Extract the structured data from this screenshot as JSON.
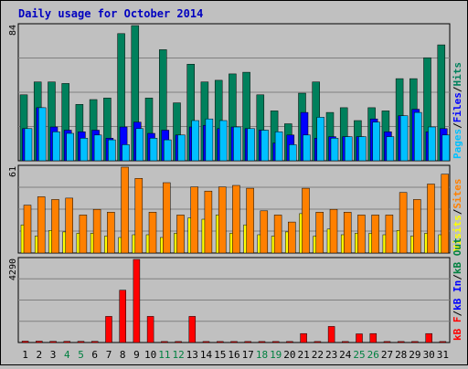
{
  "chart_data": {
    "title": "Daily usage for October 2014",
    "days": [
      "1",
      "2",
      "3",
      "4",
      "5",
      "6",
      "7",
      "8",
      "9",
      "10",
      "11",
      "12",
      "13",
      "14",
      "15",
      "16",
      "17",
      "18",
      "19",
      "20",
      "21",
      "22",
      "23",
      "24",
      "25",
      "26",
      "27",
      "28",
      "29",
      "30",
      "31"
    ],
    "weekend_days": [
      "4",
      "5",
      "11",
      "12",
      "18",
      "19",
      "25",
      "26"
    ],
    "colors": {
      "hits": "#00805c",
      "files": "#0000ff",
      "pages": "#00c0ff",
      "visits": "#ffff00",
      "sites": "#ff8000",
      "kb_in": "#0000ff",
      "kb_out": "#008040",
      "kb_f": "#ff0000",
      "title": "#0000c0",
      "weekend_label": "#008040",
      "plot_bg": "#c0c0c0",
      "outer_bg": "#c0c0c0"
    },
    "panels": [
      {
        "type": "bar",
        "ymax": 84,
        "ymax_label": "84",
        "series": [
          {
            "name": "Hits",
            "values": [
              41,
              49,
              49,
              48,
              35,
              38,
              39,
              79,
              84,
              39,
              69,
              36,
              60,
              49,
              50,
              54,
              55,
              41,
              31,
              23,
              42,
              49,
              30,
              33,
              25,
              33,
              31,
              51,
              51,
              64,
              72
            ]
          },
          {
            "name": "Files",
            "values": [
              20,
              33,
              21,
              19,
              18,
              19,
              14,
              21,
              24,
              17,
              19,
              16,
              21,
              22,
              20,
              21,
              20,
              19,
              11,
              16,
              30,
              14,
              15,
              15,
              15,
              26,
              18,
              28,
              32,
              18,
              20
            ]
          },
          {
            "name": "Pages",
            "values": [
              20,
              33,
              18,
              17,
              14,
              16,
              13,
              10,
              20,
              14,
              13,
              16,
              25,
              26,
              25,
              21,
              20,
              19,
              18,
              10,
              16,
              27,
              14,
              15,
              15,
              24,
              15,
              28,
              30,
              21,
              16
            ]
          }
        ]
      },
      {
        "type": "bar",
        "ymax": 61,
        "ymax_label": "61",
        "series": [
          {
            "name": "Visits",
            "values": [
              20,
              12,
              16,
              15,
              14,
              14,
              12,
              11,
              13,
              13,
              11,
              14,
              25,
              24,
              27,
              14,
              20,
              13,
              12,
              15,
              28,
              12,
              17,
              13,
              14,
              14,
              13,
              16,
              12,
              14,
              13
            ]
          },
          {
            "name": "Sites",
            "values": [
              34,
              40,
              38,
              39,
              27,
              31,
              29,
              61,
              53,
              29,
              50,
              27,
              47,
              44,
              47,
              48,
              46,
              30,
              27,
              22,
              46,
              29,
              31,
              29,
              27,
              27,
              27,
              43,
              38,
              49,
              56
            ]
          }
        ]
      },
      {
        "type": "bar",
        "ymax": 4290,
        "ymax_label": "4290",
        "series": [
          {
            "name": "kB F",
            "values": [
              70,
              70,
              60,
              60,
              60,
              60,
              1350,
              2700,
              4290,
              1350,
              50,
              50,
              1350,
              50,
              50,
              50,
              50,
              50,
              50,
              50,
              460,
              50,
              830,
              50,
              450,
              460,
              50,
              50,
              50,
              460,
              50
            ]
          },
          {
            "name": "kB In",
            "values": [
              0,
              0,
              0,
              0,
              0,
              0,
              0,
              0,
              0,
              0,
              0,
              0,
              0,
              0,
              0,
              0,
              0,
              0,
              0,
              0,
              0,
              0,
              0,
              0,
              0,
              0,
              0,
              0,
              0,
              0,
              0
            ]
          },
          {
            "name": "kB Out",
            "values": [
              0,
              0,
              0,
              0,
              0,
              0,
              0,
              0,
              0,
              0,
              0,
              0,
              0,
              0,
              0,
              0,
              0,
              0,
              0,
              0,
              0,
              0,
              0,
              0,
              0,
              0,
              0,
              0,
              0,
              0,
              0
            ]
          }
        ]
      }
    ],
    "legends": [
      [
        "Pages",
        "/",
        "Files",
        "/",
        "Hits"
      ],
      [
        "Visits",
        "/",
        "Sites"
      ],
      [
        "kB F",
        "/",
        "kB In",
        "/",
        "kB Out"
      ]
    ]
  }
}
